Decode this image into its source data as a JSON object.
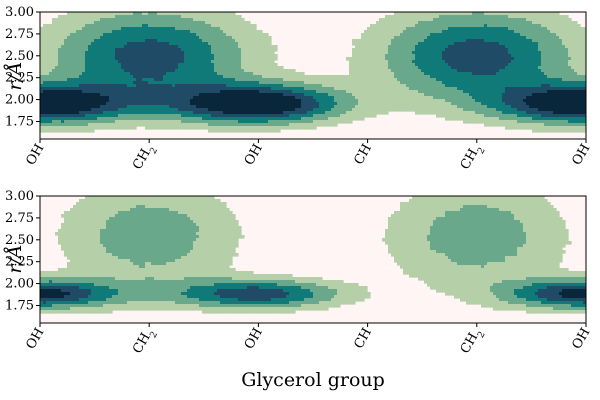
{
  "chart_data": [
    {
      "type": "heatmap",
      "subtype": "filled-contour",
      "x_categories": [
        "OH",
        "CH2",
        "OH",
        "CH",
        "CH2",
        "OH"
      ],
      "x_categories_display": [
        {
          "base": "OH",
          "sub": ""
        },
        {
          "base": "CH",
          "sub": "2"
        },
        {
          "base": "OH",
          "sub": ""
        },
        {
          "base": "CH",
          "sub": ""
        },
        {
          "base": "CH",
          "sub": "2"
        },
        {
          "base": "OH",
          "sub": ""
        }
      ],
      "xlabel": "",
      "ylabel": "r/Å",
      "yticks": [
        "1.75",
        "2.00",
        "2.25",
        "2.50",
        "2.75",
        "3.00"
      ],
      "ylim": [
        1.55,
        3.0
      ],
      "levels": 5,
      "colors": [
        "#fff5f5",
        "#b5cfa8",
        "#6aa88c",
        "#107a78",
        "#1f4b66",
        "#09263a"
      ],
      "blobs": [
        {
          "x": 0.0,
          "y": 1.95,
          "peak": 5.0,
          "sx": 0.55,
          "sy": 0.16
        },
        {
          "x": 2.0,
          "y": 1.95,
          "peak": 5.0,
          "sx": 0.55,
          "sy": 0.16
        },
        {
          "x": 5.0,
          "y": 1.95,
          "peak": 5.0,
          "sx": 0.55,
          "sy": 0.16
        },
        {
          "x": 1.0,
          "y": 2.5,
          "peak": 3.6,
          "sx": 0.65,
          "sy": 0.38
        },
        {
          "x": 4.0,
          "y": 2.5,
          "peak": 3.6,
          "sx": 0.65,
          "sy": 0.38
        }
      ]
    },
    {
      "type": "heatmap",
      "subtype": "filled-contour",
      "x_categories": [
        "OH",
        "CH2",
        "OH",
        "CH",
        "CH2",
        "OH"
      ],
      "x_categories_display": [
        {
          "base": "OH",
          "sub": ""
        },
        {
          "base": "CH",
          "sub": "2"
        },
        {
          "base": "OH",
          "sub": ""
        },
        {
          "base": "CH",
          "sub": ""
        },
        {
          "base": "CH",
          "sub": "2"
        },
        {
          "base": "OH",
          "sub": ""
        }
      ],
      "xlabel": "Glycerol group",
      "ylabel": "r/Å",
      "yticks": [
        "1.75",
        "2.00",
        "2.25",
        "2.50",
        "2.75",
        "3.00"
      ],
      "ylim": [
        1.55,
        3.0
      ],
      "levels": 5,
      "colors": [
        "#fff5f5",
        "#b5cfa8",
        "#6aa88c",
        "#107a78",
        "#1f4b66",
        "#09263a"
      ],
      "blobs": [
        {
          "x": 0.0,
          "y": 1.88,
          "peak": 4.2,
          "sx": 0.5,
          "sy": 0.12
        },
        {
          "x": 2.0,
          "y": 1.88,
          "peak": 3.6,
          "sx": 0.55,
          "sy": 0.12
        },
        {
          "x": 5.0,
          "y": 1.88,
          "peak": 4.2,
          "sx": 0.5,
          "sy": 0.12
        },
        {
          "x": 1.0,
          "y": 2.55,
          "peak": 2.1,
          "sx": 0.6,
          "sy": 0.45
        },
        {
          "x": 4.0,
          "y": 2.55,
          "peak": 2.1,
          "sx": 0.6,
          "sy": 0.45
        }
      ]
    }
  ]
}
